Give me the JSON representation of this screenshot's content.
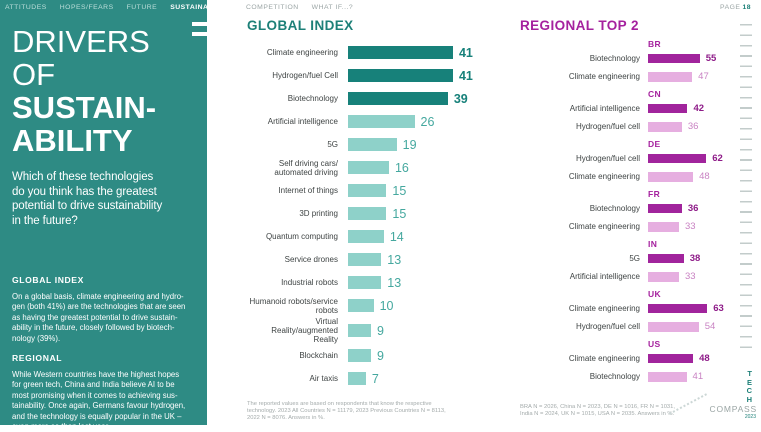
{
  "nav": {
    "items": [
      {
        "label": "ATTITUDES",
        "active": false
      },
      {
        "label": "HOPES/FEARS",
        "active": false
      },
      {
        "label": "FUTURE",
        "active": false
      },
      {
        "label": "SUSTAINABILITY",
        "active": true
      },
      {
        "label": "COMPETITION",
        "active": false
      },
      {
        "label": "WHAT IF...?",
        "active": false
      }
    ],
    "page_label": "PAGE",
    "page_number": "18"
  },
  "sidebar": {
    "title_line1": "DRIVERS OF",
    "title_line2": "SUSTAIN-",
    "title_line3": "ABILITY",
    "question": "Which of these technologies\ndo you think has the greatest\npotential to drive sustainability\nin the future?",
    "global_heading": "GLOBAL INDEX",
    "global_text": "On a global basis, climate engineering and hydro-\ngen (both 41%) are the technologies that are seen\nas having the greatest potential to drive sustain-\nability in the future, closely followed by biotech-\nnology (39%).",
    "regional_heading": "REGIONAL",
    "regional_text": "While Western countries have the highest hopes\nfor green tech, China and India believe AI to be\nmost promising when it comes to achieving sus-\ntainability. Once again, Germans favour hydrogen,\nand the technology is equally popular in the UK –\neven more so than last year."
  },
  "logo": {
    "vertical": "TECH",
    "word": "COMPASS",
    "year": "2023"
  },
  "colors": {
    "teal_background": "#2e8b84",
    "teal_dark_bar": "#17817a",
    "teal_light_bar": "#8ed1c9",
    "magenta_dark_bar": "#a1249c",
    "pink_light_bar": "#e6aee0",
    "magenta_heading": "#a5219e",
    "label_text": "#3f4444",
    "footnote_text": "#a4abab"
  },
  "chart_data": [
    {
      "type": "bar",
      "orientation": "horizontal",
      "title": "GLOBAL INDEX",
      "highlight_top": 3,
      "xlim": [
        0,
        45
      ],
      "categories": [
        "Climate engineering",
        "Hydrogen/fuel Cell",
        "Biotechnology",
        "Artificial intelligence",
        "5G",
        "Self driving cars/\nautomated driving",
        "Internet of things",
        "3D printing",
        "Quantum computing",
        "Service drones",
        "Industrial robots",
        "Humanoid robots/service\nrobots",
        "Virtual Reality/augmented\nReality",
        "Blockchain",
        "Air taxis"
      ],
      "values": [
        41,
        41,
        39,
        26,
        19,
        16,
        15,
        15,
        14,
        13,
        13,
        10,
        9,
        9,
        7
      ],
      "footnote": "The reported values are based on respondents that know the respective\ntechnology. 2023 All Countries N = 11179, 2023 Previous Countries N = 8113,\n2022 N = 8076. Answers in %."
    },
    {
      "type": "bar",
      "orientation": "horizontal",
      "title": "REGIONAL TOP 2",
      "xlim": [
        0,
        70
      ],
      "groups": [
        {
          "country": "BR",
          "entries": [
            {
              "label": "Biotechnology",
              "value": 55
            },
            {
              "label": "Climate engineering",
              "value": 47
            }
          ]
        },
        {
          "country": "CN",
          "entries": [
            {
              "label": "Artificial intelligence",
              "value": 42
            },
            {
              "label": "Hydrogen/fuel cell",
              "value": 36
            }
          ]
        },
        {
          "country": "DE",
          "entries": [
            {
              "label": "Hydrogen/fuel cell",
              "value": 62
            },
            {
              "label": "Climate engineering",
              "value": 48
            }
          ]
        },
        {
          "country": "FR",
          "entries": [
            {
              "label": "Biotechnology",
              "value": 36
            },
            {
              "label": "Climate engineering",
              "value": 33
            }
          ]
        },
        {
          "country": "IN",
          "entries": [
            {
              "label": "5G",
              "value": 38
            },
            {
              "label": "Artificial intelligence",
              "value": 33
            }
          ]
        },
        {
          "country": "UK",
          "entries": [
            {
              "label": "Climate engineering",
              "value": 63
            },
            {
              "label": "Hydrogen/fuel cell",
              "value": 54
            }
          ]
        },
        {
          "country": "US",
          "entries": [
            {
              "label": "Climate engineering",
              "value": 48
            },
            {
              "label": "Biotechnology",
              "value": 41
            }
          ]
        }
      ],
      "footnote": "BRA N = 2026, China N = 2023, DE N = 1016, FR N = 1031,\nIndia N = 2024, UK N = 1015, USA N = 2035. Answers in %."
    }
  ]
}
